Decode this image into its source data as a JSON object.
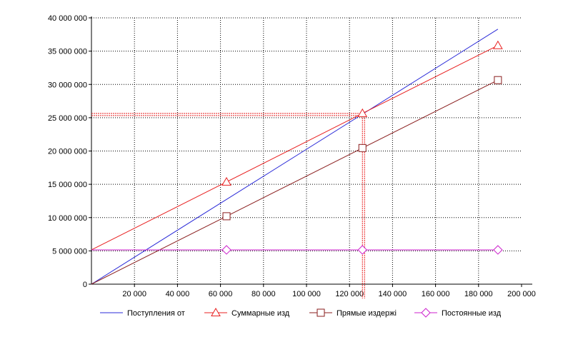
{
  "chart_data": {
    "type": "line",
    "xlim": [
      0,
      200000
    ],
    "ylim": [
      0,
      40000000
    ],
    "x_ticks": [
      {
        "value": 20000,
        "label": "20 000"
      },
      {
        "value": 40000,
        "label": "40 000"
      },
      {
        "value": 60000,
        "label": "60 000"
      },
      {
        "value": 80000,
        "label": "80 000"
      },
      {
        "value": 100000,
        "label": "100 000"
      },
      {
        "value": 120000,
        "label": "120 000"
      },
      {
        "value": 140000,
        "label": "140 000"
      },
      {
        "value": 160000,
        "label": "160 000"
      },
      {
        "value": 180000,
        "label": "180 000"
      },
      {
        "value": 200000,
        "label": "200 000"
      }
    ],
    "y_ticks": [
      {
        "value": 0,
        "label": "0"
      },
      {
        "value": 5000000,
        "label": "5 000 000"
      },
      {
        "value": 10000000,
        "label": "10 000 000"
      },
      {
        "value": 15000000,
        "label": "15 000 000"
      },
      {
        "value": 20000000,
        "label": "20 000 000"
      },
      {
        "value": 25000000,
        "label": "25 000 000"
      },
      {
        "value": 30000000,
        "label": "30 000 000"
      },
      {
        "value": 35000000,
        "label": "35 000 000"
      },
      {
        "value": 40000000,
        "label": "40 000 000"
      }
    ],
    "grid": true,
    "legend_position": "bottom",
    "series": [
      {
        "name": "Поступления от",
        "color": "#2b2bd8",
        "marker": "none",
        "x": [
          0,
          189000
        ],
        "y": [
          0,
          38300000
        ]
      },
      {
        "name": "Суммарные изд",
        "color": "#e82020",
        "marker": "triangle",
        "x": [
          0,
          62800,
          126000,
          189000
        ],
        "y": [
          5150000,
          15350000,
          25650000,
          35850000
        ],
        "marker_x": [
          62800,
          126000,
          189000
        ]
      },
      {
        "name": "Прямые издержі",
        "color": "#8a1e1e",
        "marker": "square",
        "x": [
          0,
          62800,
          126000,
          189000
        ],
        "y": [
          0,
          10200000,
          20450000,
          30650000
        ],
        "marker_x": [
          62800,
          126000,
          189000
        ]
      },
      {
        "name": "Постоянные изд",
        "color": "#cc22cc",
        "marker": "diamond",
        "x": [
          0,
          62800,
          126000,
          189000
        ],
        "y": [
          5150000,
          5150000,
          5150000,
          5150000
        ],
        "marker_x": [
          62800,
          126000,
          189000
        ]
      }
    ],
    "annotations": [
      {
        "type": "break-even",
        "color": "#e82020",
        "x": 126000,
        "y": 25650000
      }
    ]
  }
}
